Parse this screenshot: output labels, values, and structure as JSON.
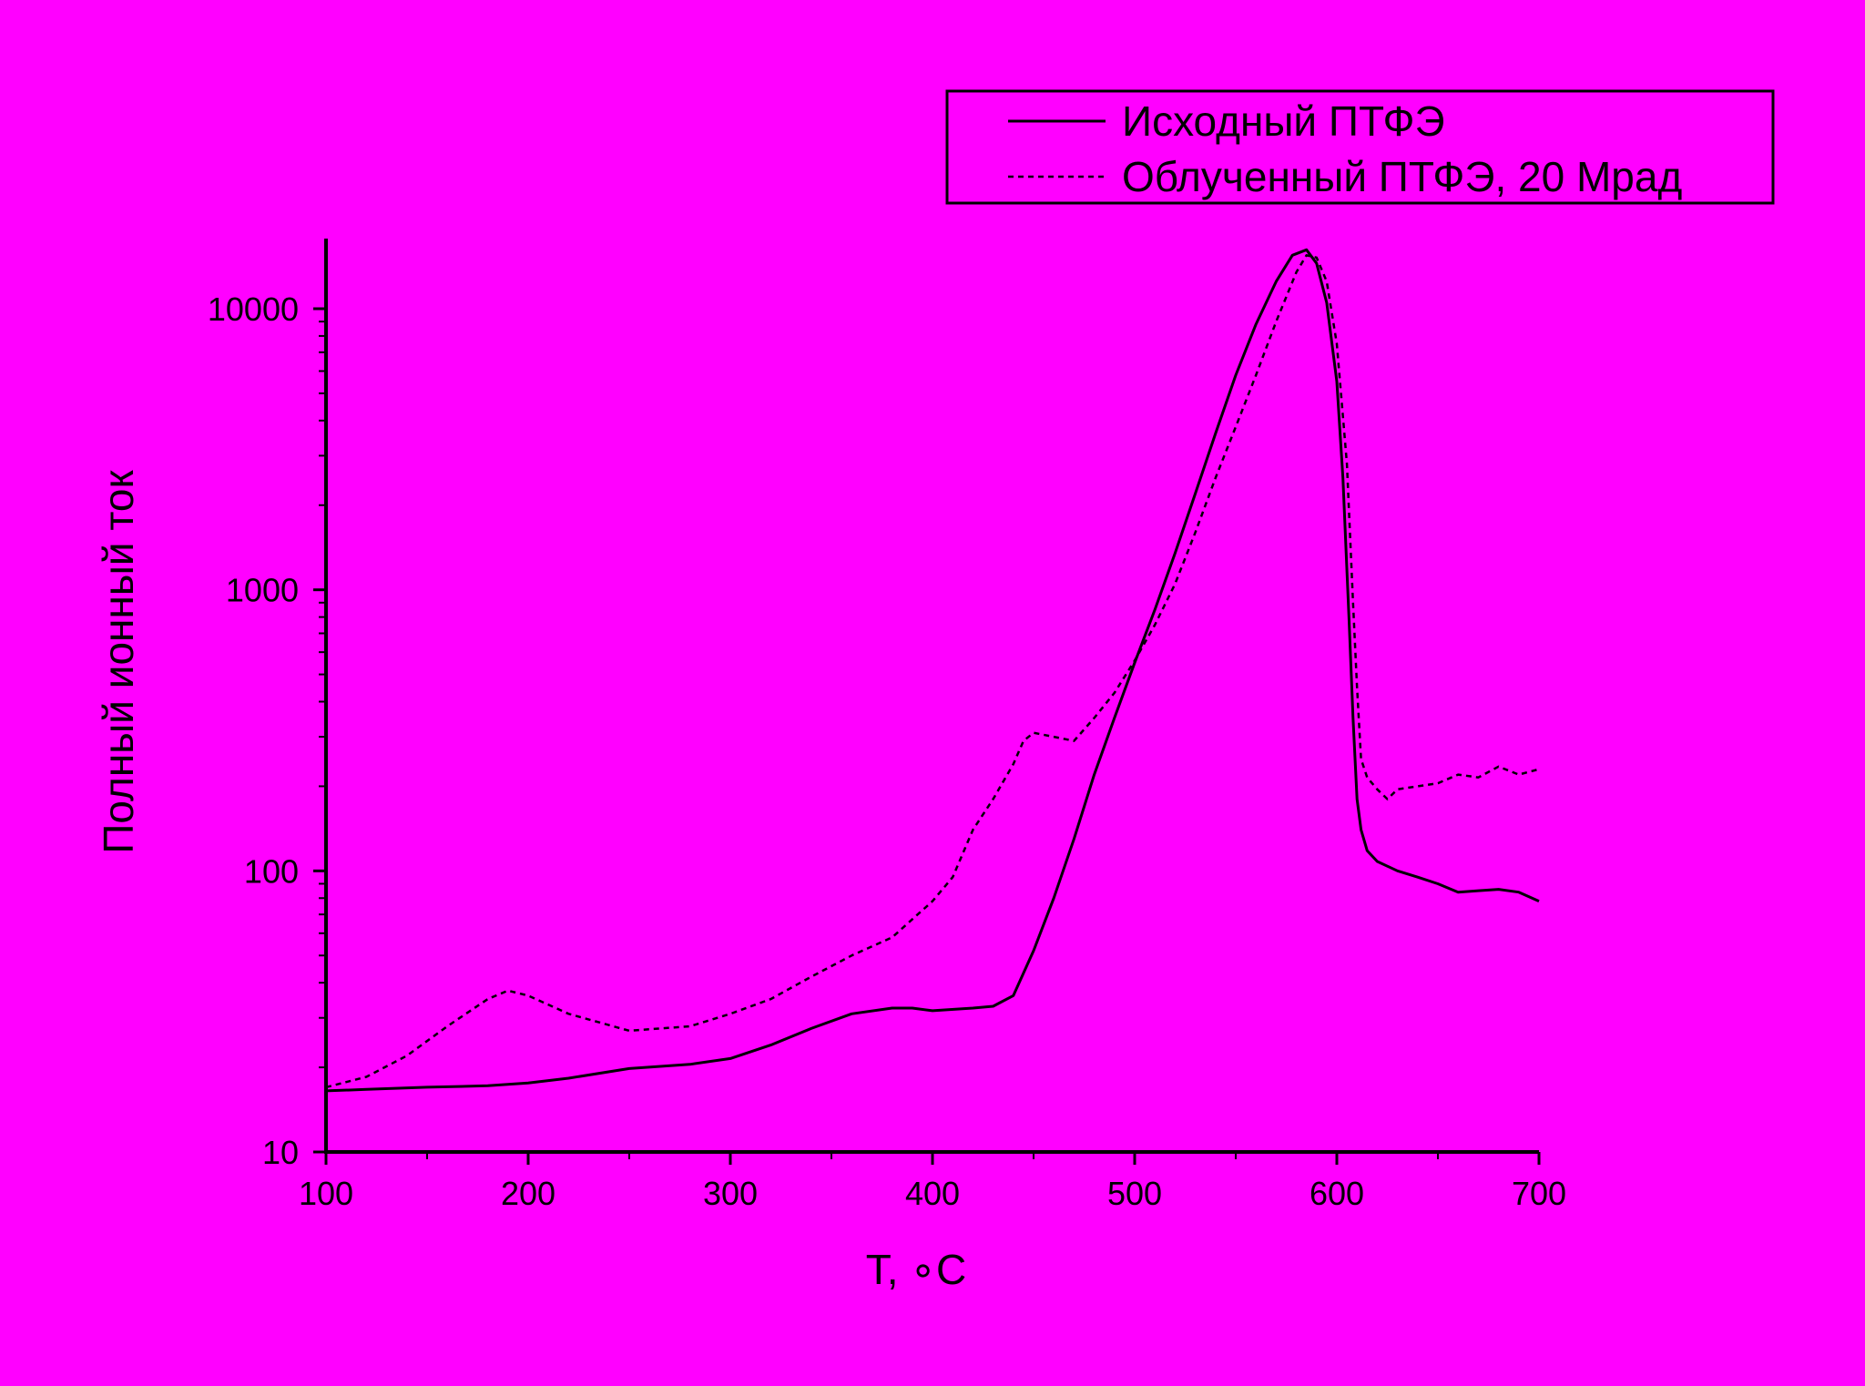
{
  "chart_data": {
    "type": "line",
    "background_color": "#ff00ff",
    "line_color": "#000000",
    "xlabel": "T, ∘C",
    "ylabel": "Полный ионный ток",
    "xlim": [
      100,
      700
    ],
    "ylim": [
      10,
      18000
    ],
    "y_scale": "log",
    "x_ticks": [
      100,
      200,
      300,
      400,
      500,
      600,
      700
    ],
    "x_tick_labels": [
      "100",
      "200",
      "300",
      "400",
      "500",
      "600",
      "700"
    ],
    "y_ticks": [
      10,
      100,
      1000,
      10000
    ],
    "y_tick_labels": [
      "10",
      "100",
      "1000",
      "10000"
    ],
    "grid": false,
    "legend_position": "top-right",
    "series": [
      {
        "name": "Исходный ПТФЭ",
        "style": "solid",
        "x": [
          100,
          120,
          150,
          180,
          200,
          220,
          250,
          280,
          300,
          320,
          340,
          360,
          380,
          390,
          400,
          420,
          430,
          440,
          450,
          460,
          470,
          480,
          490,
          500,
          510,
          520,
          530,
          540,
          550,
          560,
          570,
          578,
          585,
          590,
          595,
          600,
          603,
          606,
          608,
          610,
          612,
          615,
          620,
          630,
          640,
          650,
          660,
          670,
          680,
          690,
          700
        ],
        "y": [
          16.5,
          16.7,
          17,
          17.2,
          17.6,
          18.3,
          19.8,
          20.5,
          21.5,
          24,
          27.5,
          31,
          32.5,
          32.5,
          31.8,
          32.5,
          33,
          36,
          52,
          80,
          130,
          220,
          350,
          550,
          850,
          1350,
          2200,
          3600,
          5800,
          8800,
          12500,
          15500,
          16200,
          14500,
          10500,
          5500,
          2500,
          800,
          350,
          180,
          140,
          118,
          108,
          100,
          95,
          90,
          84,
          85,
          86,
          84,
          78
        ]
      },
      {
        "name": "Облученный ПТФЭ, 20 Мрад",
        "style": "dashed",
        "x": [
          100,
          120,
          140,
          160,
          180,
          190,
          200,
          220,
          250,
          280,
          300,
          320,
          340,
          360,
          380,
          400,
          410,
          420,
          430,
          440,
          445,
          450,
          460,
          470,
          480,
          490,
          500,
          510,
          520,
          530,
          540,
          550,
          560,
          570,
          580,
          585,
          590,
          595,
          600,
          605,
          608,
          610,
          612,
          615,
          620,
          625,
          630,
          640,
          650,
          660,
          670,
          680,
          690,
          700
        ],
        "y": [
          17,
          18.5,
          22,
          28,
          35,
          37.5,
          36,
          31,
          27,
          28,
          31,
          35,
          42,
          50,
          58,
          78,
          95,
          140,
          180,
          240,
          290,
          310,
          300,
          290,
          350,
          430,
          560,
          750,
          1050,
          1600,
          2500,
          3800,
          5800,
          9000,
          13500,
          15500,
          15200,
          12500,
          7500,
          2800,
          900,
          450,
          250,
          215,
          195,
          180,
          195,
          200,
          205,
          220,
          215,
          235,
          220,
          230
        ]
      }
    ]
  }
}
